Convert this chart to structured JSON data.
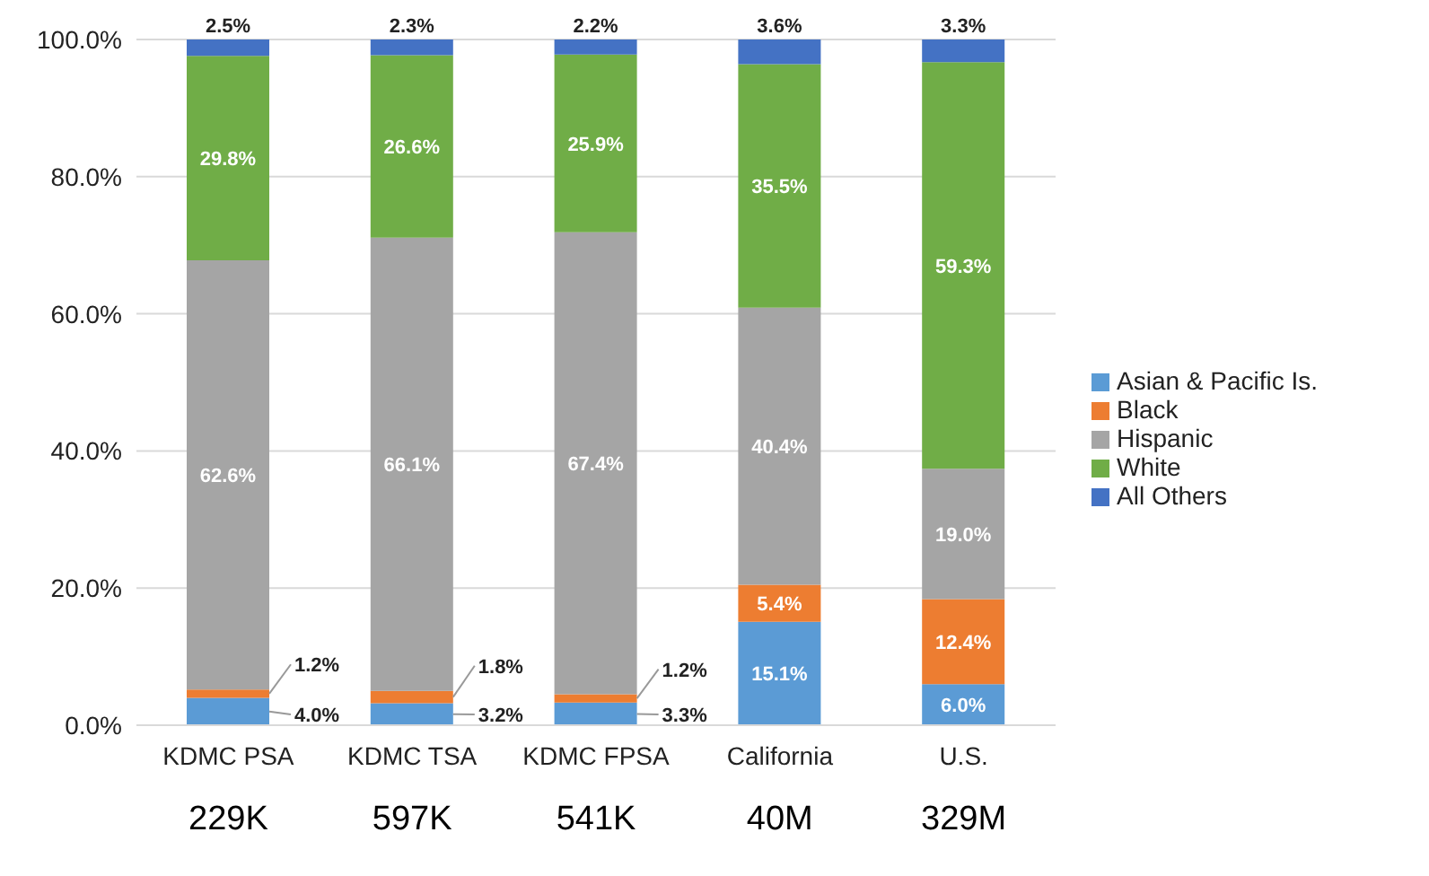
{
  "chart_data": {
    "type": "bar",
    "stacked": true,
    "categories": [
      "KDMC PSA",
      "KDMC TSA",
      "KDMC FPSA",
      "California",
      "U.S."
    ],
    "series": [
      {
        "name": "Asian & Pacific Is.",
        "color": "#5b9bd5",
        "values": [
          4.0,
          3.2,
          3.3,
          15.1,
          6.0
        ],
        "value_labels": [
          "4.0%",
          "3.2%",
          "3.3%",
          "15.1%",
          "6.0%"
        ]
      },
      {
        "name": "Black",
        "color": "#ed7d31",
        "values": [
          1.2,
          1.8,
          1.2,
          5.4,
          12.4
        ],
        "value_labels": [
          "1.2%",
          "1.8%",
          "1.2%",
          "5.4%",
          "12.4%"
        ]
      },
      {
        "name": "Hispanic",
        "color": "#a5a5a5",
        "values": [
          62.6,
          66.1,
          67.4,
          40.4,
          19.0
        ],
        "value_labels": [
          "62.6%",
          "66.1%",
          "67.4%",
          "40.4%",
          "19.0%"
        ]
      },
      {
        "name": "White",
        "color": "#70ad47",
        "values": [
          29.8,
          26.6,
          25.9,
          35.5,
          59.3
        ],
        "value_labels": [
          "29.8%",
          "26.6%",
          "25.9%",
          "35.5%",
          "59.3%"
        ]
      },
      {
        "name": "All Others",
        "color": "#4472c4",
        "values": [
          2.5,
          2.3,
          2.2,
          3.6,
          3.3
        ],
        "value_labels": [
          "2.5%",
          "2.3%",
          "2.2%",
          "3.6%",
          "3.3%"
        ]
      }
    ],
    "ylim": [
      0,
      100
    ],
    "yticks": [
      {
        "value": 0,
        "label": "0.0%"
      },
      {
        "value": 20,
        "label": "20.0%"
      },
      {
        "value": 40,
        "label": "40.0%"
      },
      {
        "value": 60,
        "label": "60.0%"
      },
      {
        "value": 80,
        "label": "80.0%"
      },
      {
        "value": 100,
        "label": "100.0%"
      }
    ],
    "grid": "y",
    "legend": "right",
    "annotations": [
      "229K",
      "597K",
      "541K",
      "40M",
      "329M"
    ]
  }
}
